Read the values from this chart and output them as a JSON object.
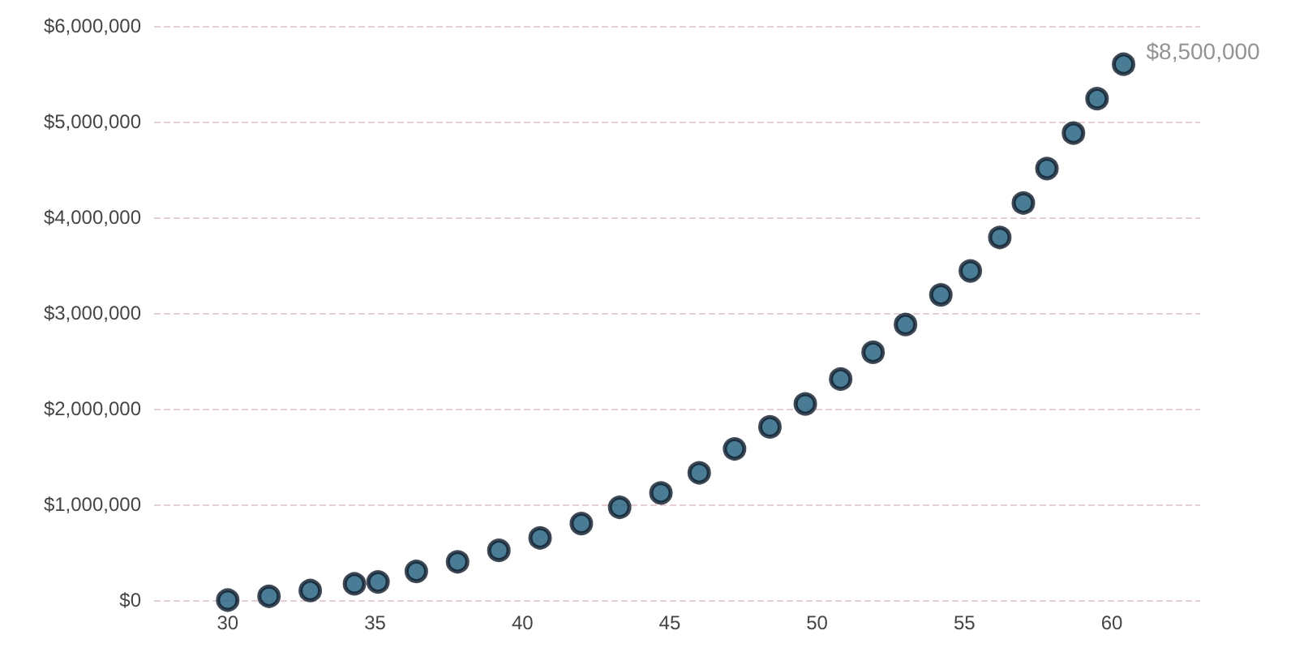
{
  "chart_data": {
    "type": "scatter",
    "marker": "circle",
    "grid": "y",
    "x": [
      30.0,
      31.4,
      32.8,
      34.3,
      35.1,
      36.4,
      37.8,
      39.2,
      40.6,
      42.0,
      43.3,
      44.7,
      46.0,
      47.2,
      48.4,
      49.6,
      50.8,
      51.9,
      53.0,
      54.2,
      55.2,
      56.2,
      57.0,
      57.8,
      58.7,
      59.5,
      60.4
    ],
    "series": [
      {
        "color": "#1d5b7a",
        "values": [
          0,
          40000,
          100000,
          170000,
          190000,
          300000,
          400000,
          520000,
          650000,
          800000,
          970000,
          1120000,
          1330000,
          1580000,
          1810000,
          2050000,
          2310000,
          2590000,
          2880000,
          3190000,
          3440000,
          3790000,
          4150000,
          4510000,
          4880000,
          5240000,
          5600000
        ]
      }
    ],
    "xlim": [
      27.5,
      63
    ],
    "xticks": [
      30,
      35,
      40,
      45,
      50,
      55,
      60
    ],
    "ylim": [
      0,
      6000000
    ],
    "yticks": [
      {
        "value": 0,
        "label": "$0"
      },
      {
        "value": 1000000,
        "label": "$1,000,000"
      },
      {
        "value": 2000000,
        "label": "$2,000,000"
      },
      {
        "value": 3000000,
        "label": "$3,000,000"
      },
      {
        "value": 4000000,
        "label": "$4,000,000"
      },
      {
        "value": 5000000,
        "label": "$5,000,000"
      },
      {
        "value": 6000000,
        "label": "$6,000,000"
      }
    ],
    "annotations": [
      {
        "text": "$8,500,000",
        "x": 60.4,
        "y": 5600000
      }
    ]
  }
}
